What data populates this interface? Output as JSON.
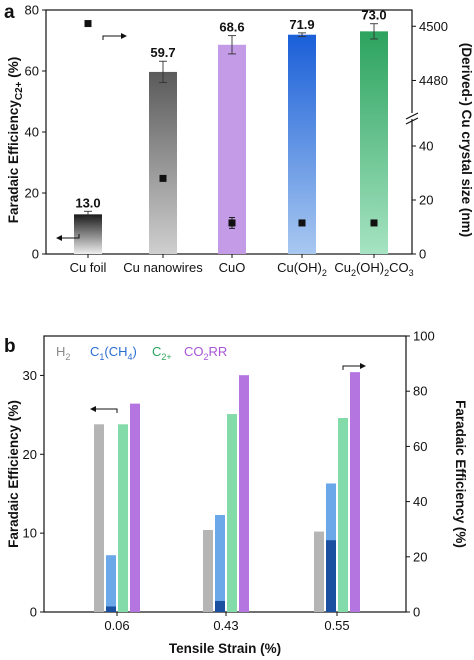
{
  "chart_data": [
    {
      "panel_label": "a",
      "type": "bar",
      "categories": [
        "Cu foil",
        "Cu nanowires",
        "CuO",
        "Cu(OH)₂",
        "Cu₂(OH)₂CO₃"
      ],
      "values": [
        13.0,
        59.7,
        68.6,
        71.9,
        73.0
      ],
      "value_labels": [
        "13.0",
        "59.7",
        "68.6",
        "71.9",
        "73.0"
      ],
      "errors": [
        1.0,
        3.5,
        3.0,
        0.6,
        2.5
      ],
      "bar_colors": [
        [
          "#eeeeee",
          "#1a1a1a"
        ],
        [
          "#cfcfcf",
          "#5a5a5a"
        ],
        [
          "#c39be6",
          "#c39be6"
        ],
        [
          "#a8c8f0",
          "#1a5fd8"
        ],
        [
          "#a6e3c2",
          "#2ca35e"
        ]
      ],
      "ylabel": "Faradaic Efficiency",
      "ylabel_sub": "C2+",
      "ylabel_unit": " (%)",
      "ylim": [
        0,
        80
      ],
      "yticks": [
        "0",
        "20",
        "40",
        "60",
        "80"
      ],
      "y2label": "(Derived-) Cu crystal size (nm)",
      "y2_lower": {
        "ylim": [
          0,
          50
        ],
        "ticks": [
          "0",
          "20",
          "40"
        ]
      },
      "y2_upper": {
        "ylim": [
          4468,
          4506
        ],
        "ticks": [
          "4480",
          "4500"
        ]
      },
      "crystal_size": {
        "values": [
          4501,
          28,
          11.5,
          11.5,
          11.5
        ],
        "errors": [
          0,
          0,
          2.0,
          0,
          0
        ],
        "axis": [
          "upper",
          "lower",
          "lower",
          "lower",
          "lower"
        ]
      }
    },
    {
      "panel_label": "b",
      "type": "bar",
      "categories": [
        "0.06",
        "0.43",
        "0.55"
      ],
      "xlabel": "Tensile Strain (%)",
      "ylabel": "Faradaic Efficiency (%)",
      "ylim": [
        0,
        35
      ],
      "yticks": [
        "0",
        "10",
        "20",
        "30"
      ],
      "y2label": "Faradaic Efficiency (%)",
      "y2lim": [
        0,
        100
      ],
      "y2ticks": [
        "0",
        "20",
        "40",
        "60",
        "80",
        "100"
      ],
      "legend": [
        {
          "text": "H",
          "sub": "2",
          "tail": "",
          "color": "#8a8a8a"
        },
        {
          "text": "C",
          "sub": "1",
          "tail": "(CH₄)",
          "color": "#2b6fd1"
        },
        {
          "text": "C",
          "sub": "2+",
          "tail": "",
          "color": "#2ca35e"
        },
        {
          "text": "CO",
          "sub": "2",
          "tail": "RR",
          "color": "#a855d6"
        }
      ],
      "series": [
        {
          "name": "H2",
          "axis": "left",
          "values": [
            23.8,
            10.4,
            10.2
          ],
          "color": "#b5b5b5"
        },
        {
          "name": "C1(CH4)",
          "axis": "left",
          "values": [
            7.2,
            12.3,
            16.3
          ],
          "inner_values": [
            0.7,
            1.4,
            9.1
          ],
          "color": "#6aa8ea",
          "inner_color": "#1b4fa0"
        },
        {
          "name": "C2+",
          "axis": "left",
          "values": [
            23.8,
            25.1,
            24.6
          ],
          "color": "#82dba8"
        },
        {
          "name": "CO2RR",
          "axis": "right",
          "values": [
            75.5,
            85.8,
            86.9
          ],
          "color": "#b475e0"
        }
      ]
    }
  ]
}
